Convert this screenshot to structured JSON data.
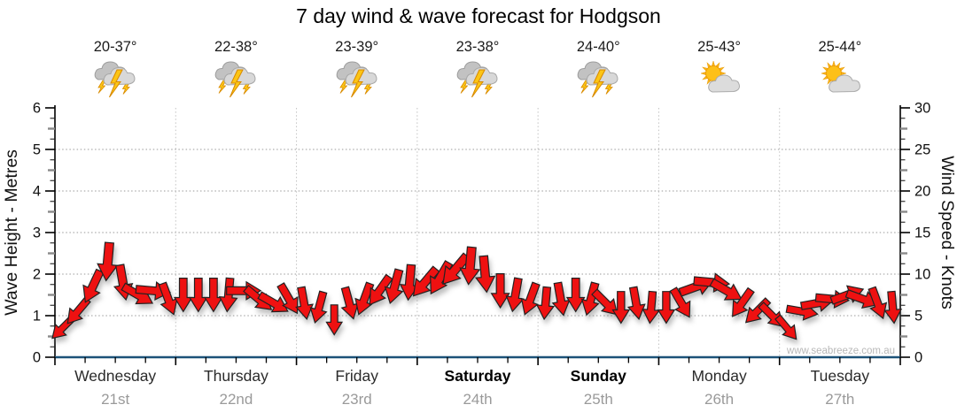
{
  "title": "7 day wind & wave forecast for Hodgson",
  "watermark": "www.seabreeze.com.au",
  "days": [
    {
      "name": "Wednesday",
      "date": "21st",
      "temp": "20-37°",
      "icon": "storm-icon",
      "weekend": false
    },
    {
      "name": "Thursday",
      "date": "22nd",
      "temp": "22-38°",
      "icon": "storm-icon",
      "weekend": false
    },
    {
      "name": "Friday",
      "date": "23rd",
      "temp": "23-39°",
      "icon": "storm-icon",
      "weekend": false
    },
    {
      "name": "Saturday",
      "date": "24th",
      "temp": "23-38°",
      "icon": "storm-icon",
      "weekend": true
    },
    {
      "name": "Sunday",
      "date": "25th",
      "temp": "24-40°",
      "icon": "storm-icon",
      "weekend": true
    },
    {
      "name": "Monday",
      "date": "26th",
      "temp": "25-43°",
      "icon": "partly-sunny-icon",
      "weekend": false
    },
    {
      "name": "Tuesday",
      "date": "27th",
      "temp": "25-44°",
      "icon": "partly-sunny-icon",
      "weekend": false
    }
  ],
  "chart_data": {
    "type": "wind-barb-timeseries",
    "title": "7 day wind & wave forecast for Hodgson",
    "left_axis": {
      "label": "Wave Height - Metres",
      "min": 0,
      "max": 6,
      "major_step": 1,
      "minor_step": 0.25
    },
    "right_axis": {
      "label": "Wind Speed - Knots",
      "min": 0,
      "max": 30,
      "major_step": 5,
      "minor_step": 1.25
    },
    "x_axis": {
      "categories": [
        "Wednesday",
        "Thursday",
        "Friday",
        "Saturday",
        "Sunday",
        "Monday",
        "Tuesday"
      ],
      "dates": [
        "21st",
        "22nd",
        "23rd",
        "24th",
        "25th",
        "26th",
        "27th"
      ],
      "minor_ticks_per_day": 4
    },
    "grid": {
      "horizontal_at_metres": [
        1,
        2,
        3,
        4,
        5
      ],
      "vertical_at_day_boundaries": true
    },
    "wind": {
      "samples_per_day": 8,
      "speeds_knots": [
        3.5,
        5.5,
        8.5,
        11.5,
        9,
        7.5,
        8,
        7,
        7.5,
        7.5,
        7.5,
        7.5,
        8,
        7,
        6.5,
        7,
        6.5,
        6,
        4.5,
        6.5,
        7,
        8,
        8.5,
        9,
        9,
        9.5,
        10.5,
        11,
        10,
        8,
        7.5,
        7,
        6.5,
        7,
        7.5,
        7,
        6.5,
        6,
        6.5,
        6,
        6,
        6.5,
        8.5,
        9,
        8,
        6.5,
        5.5,
        5,
        3.5,
        5.5,
        6.5,
        7,
        7.5,
        7,
        6.5,
        6
      ],
      "arrow_bearing_deg": [
        225,
        220,
        205,
        185,
        170,
        120,
        95,
        160,
        180,
        180,
        180,
        185,
        90,
        130,
        120,
        150,
        170,
        195,
        180,
        165,
        200,
        215,
        195,
        185,
        220,
        210,
        220,
        185,
        175,
        180,
        190,
        200,
        185,
        170,
        180,
        195,
        135,
        180,
        170,
        185,
        180,
        150,
        70,
        95,
        120,
        215,
        225,
        135,
        140,
        100,
        80,
        95,
        70,
        110,
        160,
        175
      ]
    },
    "colors": {
      "arrow_fill": "#ee1111",
      "arrow_outline": "#222222",
      "baseline_blue": "#1d5278",
      "grid_gray": "#9a9a9a",
      "grid_vertical_gray": "#c2c2c2",
      "axis_black": "#000000",
      "day_label": "#2b2b2b",
      "date_label": "#9a9a9a",
      "watermark_gray": "#b8b8b8"
    }
  }
}
